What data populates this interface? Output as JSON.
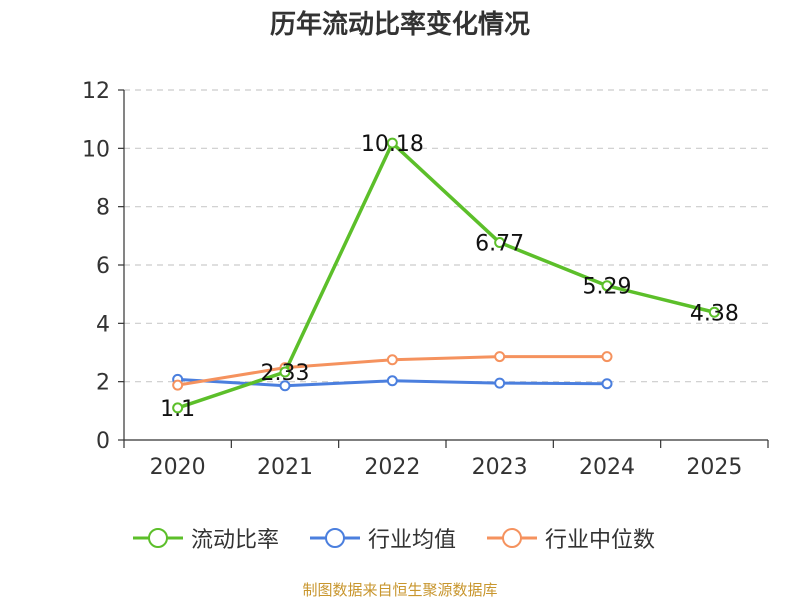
{
  "chart_data": {
    "type": "line",
    "title": "历年流动比率变化情况",
    "categories": [
      "2020",
      "2021",
      "2022",
      "2023",
      "2024",
      "2025"
    ],
    "ylim": [
      0,
      12
    ],
    "yticks": [
      0,
      2,
      4,
      6,
      8,
      10,
      12
    ],
    "ytick_labels": [
      "0",
      "2",
      "4",
      "6",
      "8",
      "10",
      "12"
    ],
    "grid": true,
    "legend_position": "bottom",
    "series": [
      {
        "name": "流动比率",
        "color": "#5cbf2a",
        "values": [
          1.1,
          2.33,
          10.18,
          6.77,
          5.29,
          4.38
        ],
        "labels": [
          "1.1",
          "2.33",
          "10.18",
          "6.77",
          "5.29",
          "4.38"
        ]
      },
      {
        "name": "行业均值",
        "color": "#4b7fde",
        "values": [
          2.08,
          1.86,
          2.03,
          1.95,
          1.93,
          null
        ]
      },
      {
        "name": "行业中位数",
        "color": "#f5925e",
        "values": [
          1.88,
          2.48,
          2.75,
          2.86,
          2.86,
          null
        ]
      }
    ]
  },
  "source_text": "制图数据来自恒生聚源数据库"
}
